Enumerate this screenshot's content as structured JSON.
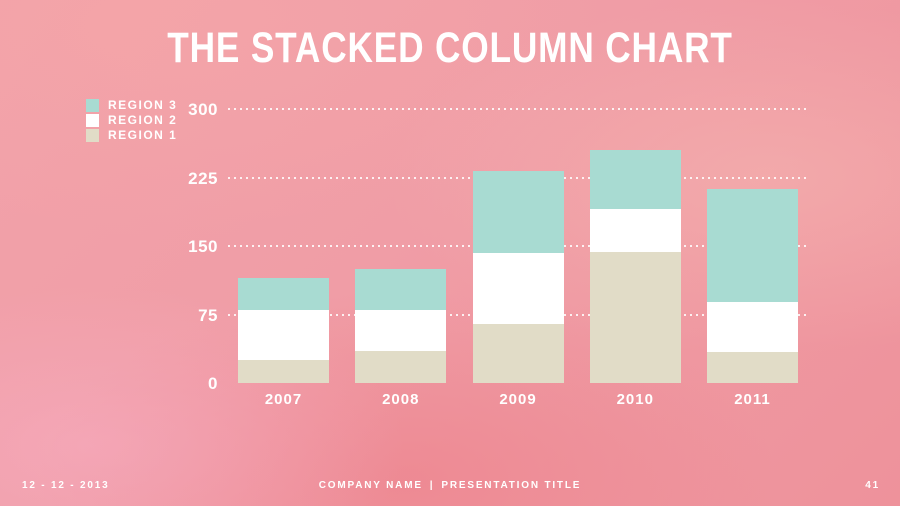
{
  "slide": {
    "title": "THE STACKED COLUMN CHART"
  },
  "legend": {
    "items": [
      {
        "label": "REGION 3",
        "color": "#a8dbd2"
      },
      {
        "label": "REGION 2",
        "color": "#ffffff"
      },
      {
        "label": "REGION 1",
        "color": "#e1dcc7"
      }
    ]
  },
  "chart_data": {
    "type": "bar",
    "stacked": true,
    "title": "THE STACKED COLUMN CHART",
    "categories": [
      "2007",
      "2008",
      "2009",
      "2010",
      "2011"
    ],
    "series": [
      {
        "name": "REGION 1",
        "color": "#e1dcc7",
        "values": [
          25,
          35,
          65,
          143,
          34
        ]
      },
      {
        "name": "REGION 2",
        "color": "#ffffff",
        "values": [
          55,
          45,
          77,
          48,
          55
        ]
      },
      {
        "name": "REGION 3",
        "color": "#a8dbd2",
        "values": [
          35,
          45,
          90,
          64,
          123
        ]
      }
    ],
    "totals": [
      115,
      125,
      232,
      255,
      212
    ],
    "xlabel": "",
    "ylabel": "",
    "ylim": [
      0,
      300
    ],
    "yticks": [
      0,
      75,
      150,
      225,
      300
    ],
    "grid": "dotted-horizontal-white",
    "legend_position": "top-left"
  },
  "footer": {
    "date": "12 - 12 - 2013",
    "company": "COMPANY NAME",
    "separator": "|",
    "presentation": "PRESENTATION TITLE",
    "page": "41"
  },
  "colors": {
    "background_light": "#f2a4ac",
    "background_deep": "#ee8d95",
    "text": "#ffffff",
    "grid": "#ffffff"
  }
}
